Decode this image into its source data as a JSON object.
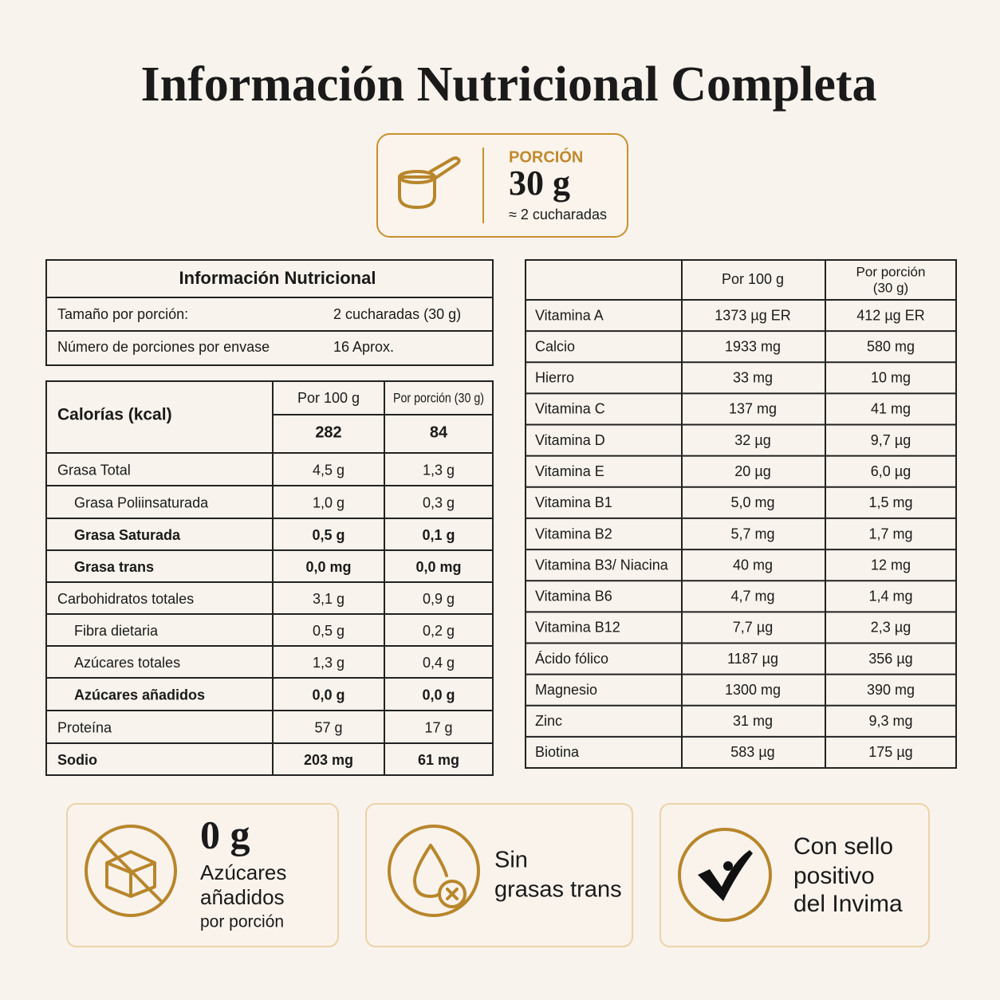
{
  "title": "Información Nutricional Completa",
  "portion": {
    "label": "PORCIÓN",
    "amount": "30 g",
    "equivalent": "≈ 2 cucharadas"
  },
  "serving_table": {
    "title": "Información Nutricional",
    "rows": [
      [
        "Tamaño por porción:",
        "2 cucharadas (30 g)"
      ],
      [
        "Número de porciones por envase",
        "16 Aprox."
      ]
    ]
  },
  "nutrients_table": {
    "header": [
      "Calorías (kcal)",
      "Por 100 g",
      "Por porción (30 g)"
    ],
    "calories": [
      "282",
      "84"
    ],
    "rows": [
      [
        "Grasa Total",
        "4,5 g",
        "1,3 g"
      ],
      [
        "Grasa Poliinsaturada",
        "1,0 g",
        "0,3 g"
      ],
      [
        "Grasa Saturada",
        "0,5 g",
        "0,1 g"
      ],
      [
        "Grasa trans",
        "0,0 mg",
        "0,0 mg"
      ],
      [
        "Carbohidratos totales",
        "3,1 g",
        "0,9 g"
      ],
      [
        "Fibra dietaria",
        "0,5 g",
        "0,2 g"
      ],
      [
        "Azúcares totales",
        "1,3 g",
        "0,4 g"
      ],
      [
        "Azúcares añadidos",
        "0,0 g",
        "0,0 g"
      ],
      [
        "Proteína",
        "57 g",
        "17 g"
      ],
      [
        "Sodio",
        "203 mg",
        "61 mg"
      ]
    ]
  },
  "vitamins_table": {
    "header": {
      "per_100": "Por 100 g",
      "per_portion": [
        "Por porción",
        "(30 g)"
      ]
    },
    "rows": [
      [
        "Vitamina A",
        "1373 µg ER",
        "412 µg ER"
      ],
      [
        "Calcio",
        "1933 mg",
        "580 mg"
      ],
      [
        "Hierro",
        "33 mg",
        "10 mg"
      ],
      [
        "Vitamina C",
        "137 mg",
        "41 mg"
      ],
      [
        "Vitamina D",
        "32 µg",
        "9,7 µg"
      ],
      [
        "Vitamina E",
        "20 µg",
        "6,0 µg"
      ],
      [
        "Vitamina B1",
        "5,0 mg",
        "1,5 mg"
      ],
      [
        "Vitamina B2",
        "5,7 mg",
        "1,7 mg"
      ],
      [
        "Vitamina B3/ Niacina",
        "40 mg",
        "12 mg"
      ],
      [
        "Vitamina B6",
        "4,7 mg",
        "1,4 mg"
      ],
      [
        "Vitamina B12",
        "7,7 µg",
        "2,3 µg"
      ],
      [
        "Ácido fólico",
        "1187 µg",
        "356 µg"
      ],
      [
        "Magnesio",
        "1300 mg",
        "390 mg"
      ],
      [
        "Zinc",
        "31 mg",
        "9,3 mg"
      ],
      [
        "Biotina",
        "583 µg",
        "175 µg"
      ]
    ]
  },
  "badges": [
    {
      "lines": [
        "0 g",
        "Azúcares",
        "añadidos",
        "por porción"
      ]
    },
    {
      "lines": [
        "Sin",
        "grasas trans"
      ]
    },
    {
      "lines": [
        "Con sello",
        "positivo",
        "del Invima"
      ]
    }
  ]
}
